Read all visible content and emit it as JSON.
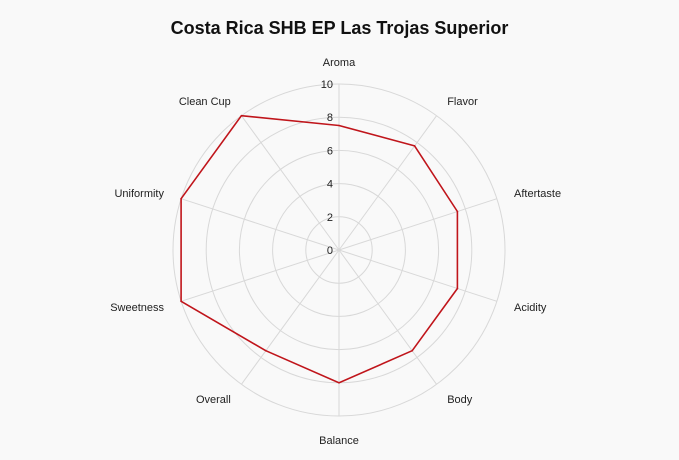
{
  "chart_data": {
    "type": "radar",
    "title": "Costa Rica SHB EP Las Trojas Superior",
    "categories": [
      "Aroma",
      "Flavor",
      "Aftertaste",
      "Acidity",
      "Body",
      "Balance",
      "Overall",
      "Sweetness",
      "Uniformity",
      "Clean Cup"
    ],
    "values": [
      7.5,
      7.75,
      7.5,
      7.5,
      7.5,
      8.0,
      7.5,
      10.0,
      10.0,
      10.0
    ],
    "rlim": [
      0,
      10
    ],
    "ticks": [
      "0",
      "2",
      "4",
      "6",
      "8",
      "10"
    ],
    "grid": true,
    "colors": {
      "series": "#c0151b",
      "grid": "#d8d8d8"
    }
  }
}
